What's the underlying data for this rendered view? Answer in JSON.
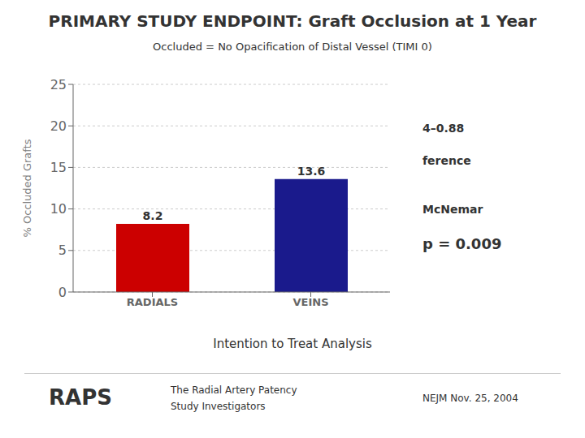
{
  "chart_data": {
    "type": "bar",
    "title": "PRIMARY STUDY ENDPOINT: Graft Occlusion at 1 Year",
    "subtitle": "Occluded = No Opacification of Distal Vessel (TIMI 0)",
    "categories": [
      "RADIALS",
      "VEINS"
    ],
    "values": [
      8.2,
      13.6
    ],
    "colors": [
      "#cc0000",
      "#1a1a8c"
    ],
    "ylabel": "% Occluded Grafts",
    "ylim": [
      0,
      25
    ],
    "yticks": [
      0,
      5,
      10,
      15,
      20,
      25
    ],
    "grid": true,
    "data_labels": true,
    "annotations": [
      "McNemar",
      "p = 0.009",
      "4–0.88",
      "ference",
      "Intention to Treat Analysis",
      "RAPS",
      "The Radial Artery Patency",
      "Study Investigators",
      "NEJM Nov. 25, 2004"
    ]
  }
}
